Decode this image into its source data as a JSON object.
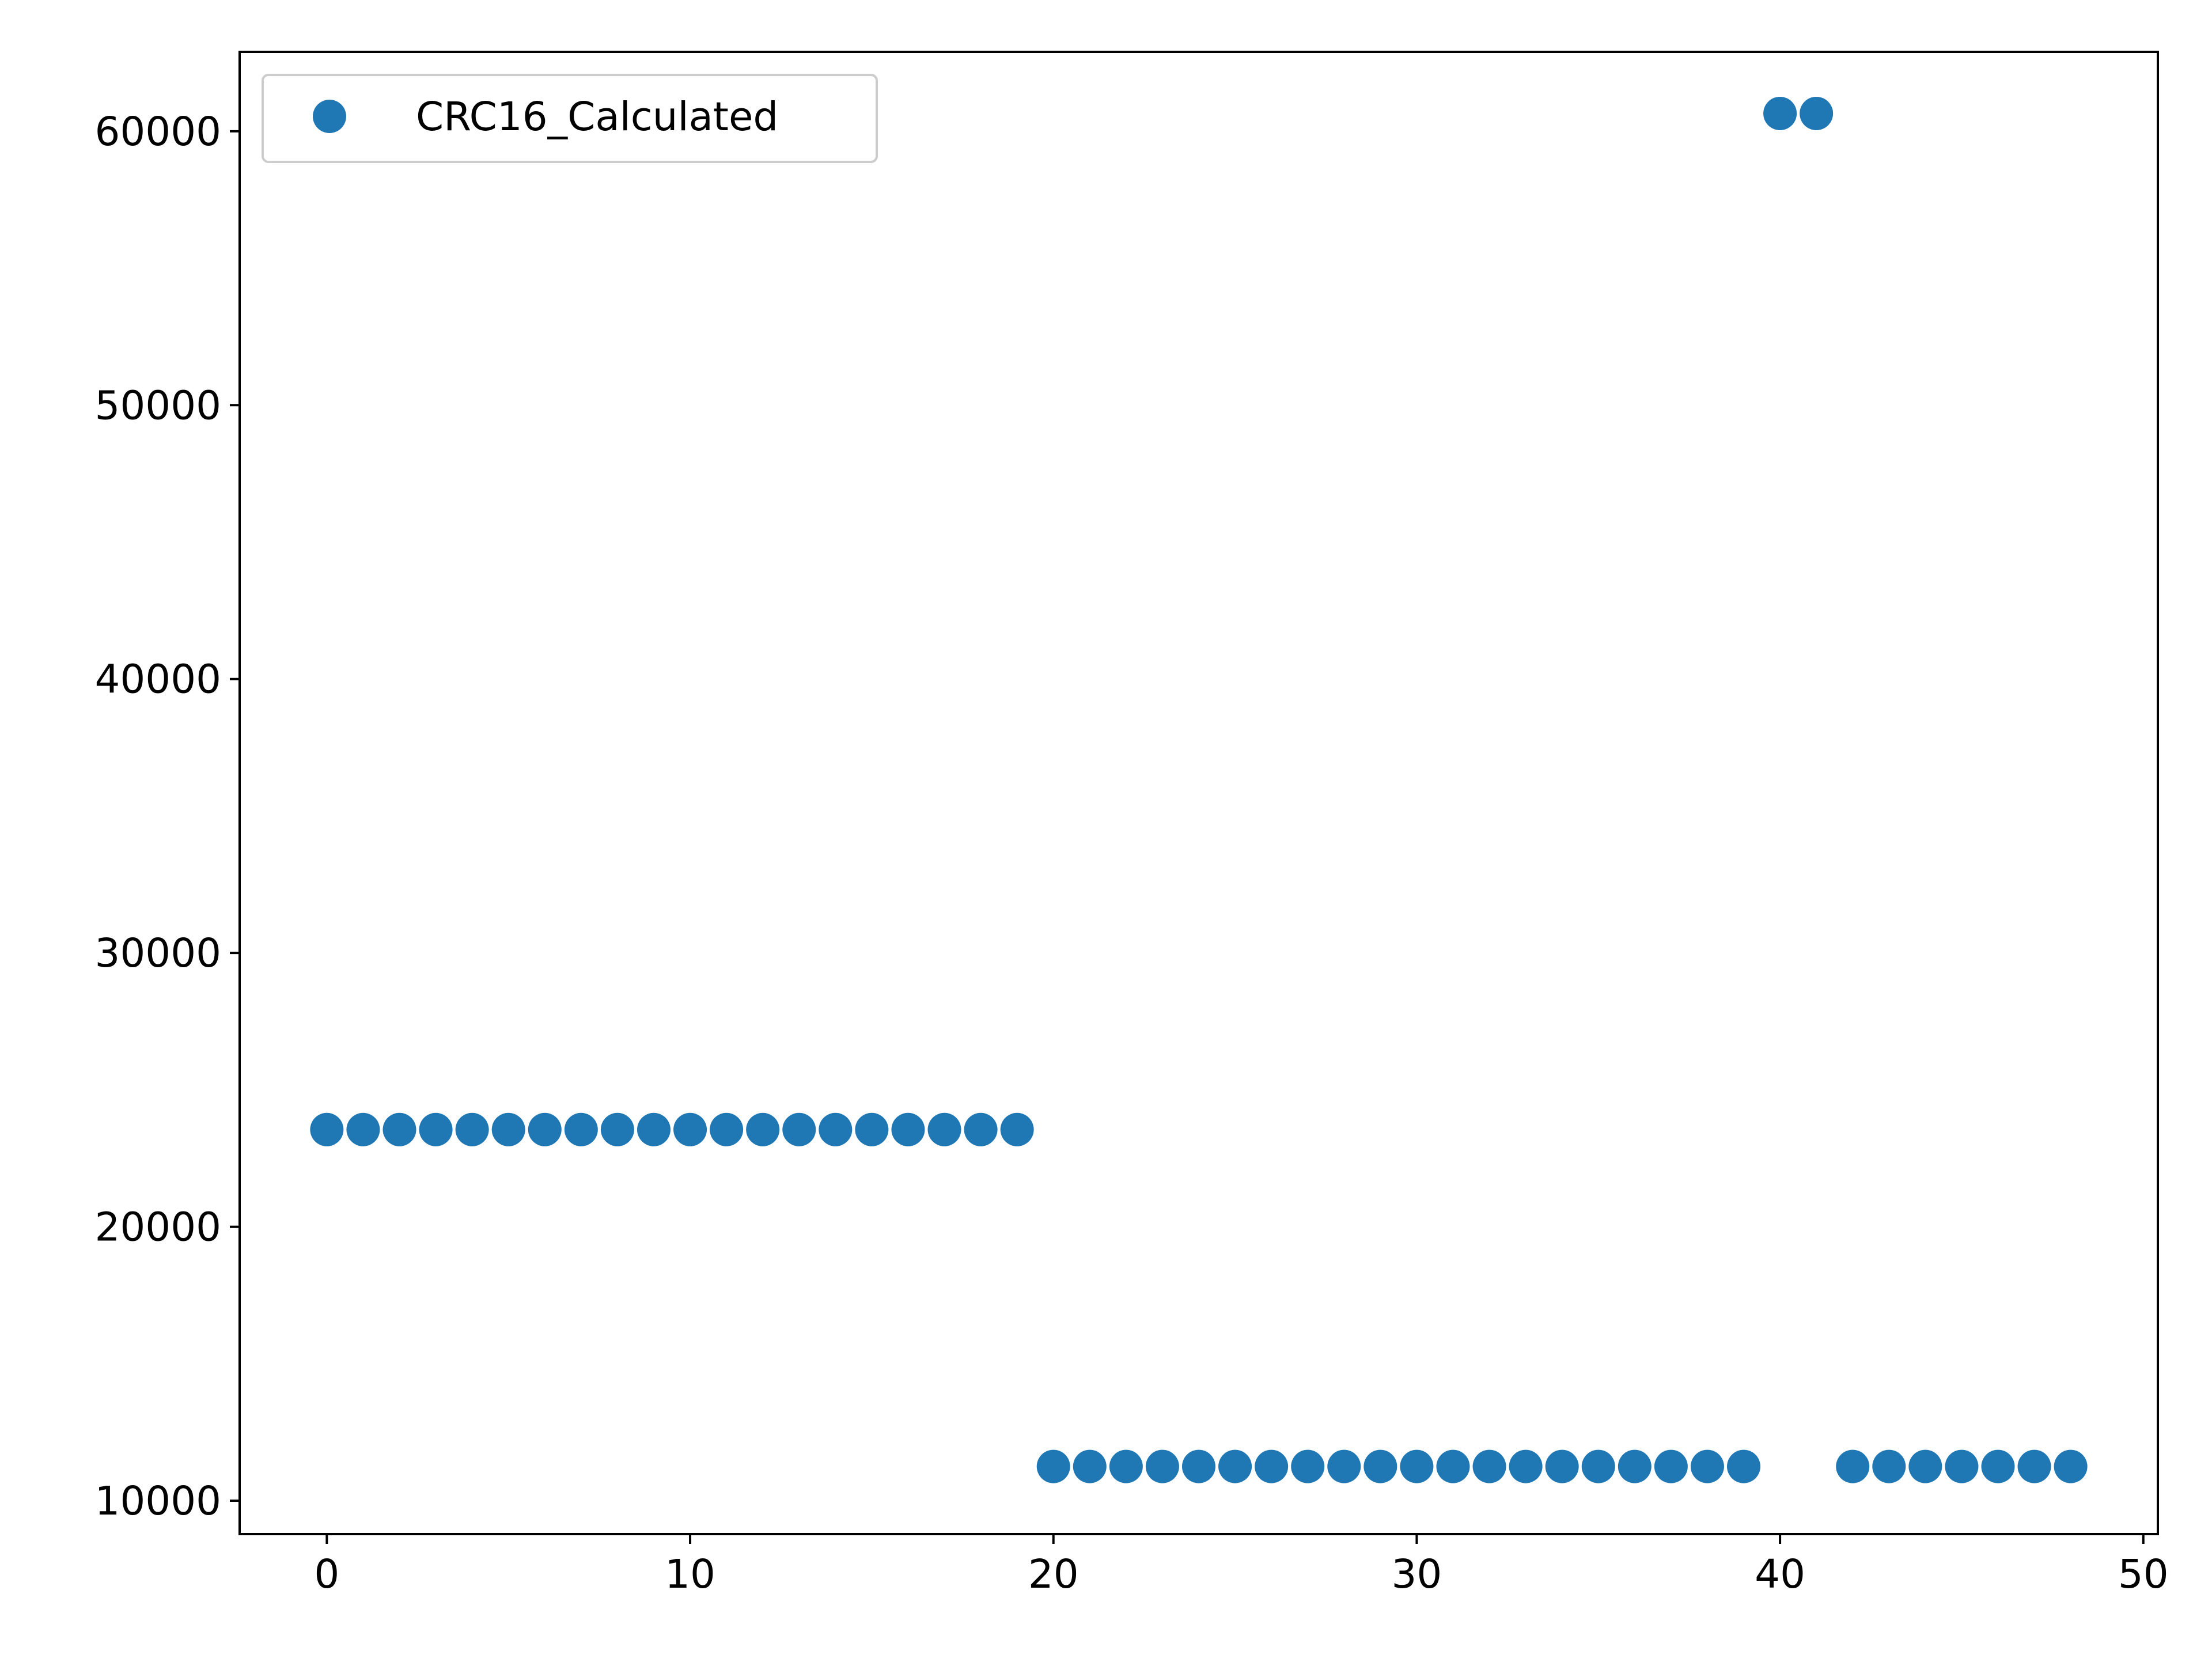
{
  "chart_data": {
    "type": "scatter",
    "title": "",
    "xlabel": "",
    "ylabel": "",
    "xlim": [
      -2.4,
      50.4
    ],
    "ylim": [
      8780,
      62900
    ],
    "xticks": [
      0,
      10,
      20,
      30,
      40,
      50
    ],
    "yticks": [
      10000,
      20000,
      30000,
      40000,
      50000,
      60000
    ],
    "xtick_labels": [
      "0",
      "10",
      "20",
      "30",
      "40",
      "50"
    ],
    "ytick_labels": [
      "10000",
      "20000",
      "30000",
      "40000",
      "50000",
      "60000"
    ],
    "grid": false,
    "legend": {
      "position": "upper-left",
      "show": true
    },
    "series": [
      {
        "name": "CRC16_Calculated",
        "color": "#1f77b4",
        "marker": "circle",
        "x": [
          0,
          1,
          2,
          3,
          4,
          5,
          6,
          7,
          8,
          9,
          10,
          11,
          12,
          13,
          14,
          15,
          16,
          17,
          18,
          19,
          20,
          21,
          22,
          23,
          24,
          25,
          26,
          27,
          28,
          29,
          30,
          31,
          32,
          33,
          34,
          35,
          36,
          37,
          38,
          39,
          40,
          41,
          42,
          43,
          44,
          45,
          46,
          47,
          48
        ],
        "y": [
          23550,
          23550,
          23550,
          23550,
          23550,
          23550,
          23550,
          23550,
          23550,
          23550,
          23550,
          23550,
          23550,
          23550,
          23550,
          23550,
          23550,
          23550,
          23550,
          23550,
          11250,
          11250,
          11250,
          11250,
          11250,
          11250,
          11250,
          11250,
          11250,
          11250,
          11250,
          11250,
          11250,
          11250,
          11250,
          11250,
          11250,
          11250,
          11250,
          11250,
          60650,
          60650,
          11250,
          11250,
          11250,
          11250,
          11250,
          11250,
          11250
        ]
      }
    ]
  }
}
